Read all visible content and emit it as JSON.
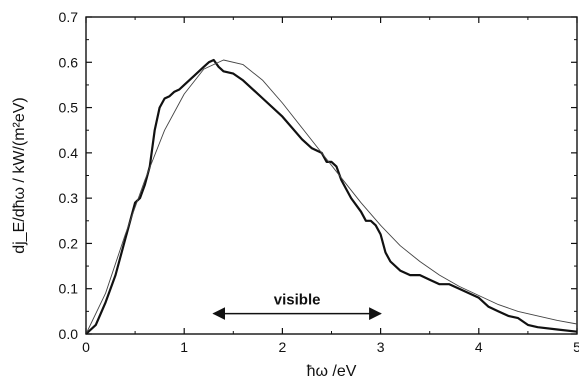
{
  "chart_data": {
    "type": "line",
    "title": "",
    "xlabel": "ħω /eV",
    "ylabel": "dj_E/dħω / kW/(m²eV)",
    "xlim": [
      0,
      5
    ],
    "ylim": [
      0,
      0.7
    ],
    "grid": false,
    "legend": "none",
    "x_ticks": [
      "0",
      "1",
      "2",
      "3",
      "4",
      "5"
    ],
    "y_ticks": [
      "0.0",
      "0.1",
      "0.2",
      "0.3",
      "0.4",
      "0.5",
      "0.6",
      "0.7"
    ],
    "series": [
      {
        "style": "thick",
        "color": "#111111",
        "x": [
          0,
          0.1,
          0.2,
          0.3,
          0.35,
          0.4,
          0.45,
          0.5,
          0.55,
          0.6,
          0.65,
          0.7,
          0.75,
          0.8,
          0.85,
          0.9,
          0.95,
          1.0,
          1.05,
          1.1,
          1.2,
          1.25,
          1.3,
          1.35,
          1.4,
          1.5,
          1.6,
          1.8,
          2.0,
          2.2,
          2.3,
          2.4,
          2.45,
          2.5,
          2.55,
          2.6,
          2.7,
          2.8,
          2.85,
          2.9,
          2.95,
          3.0,
          3.05,
          3.1,
          3.2,
          3.3,
          3.4,
          3.5,
          3.6,
          3.7,
          3.8,
          3.9,
          4.0,
          4.1,
          4.2,
          4.3,
          4.4,
          4.5,
          4.6,
          4.8,
          5.0
        ],
        "values": [
          0.0,
          0.02,
          0.07,
          0.13,
          0.17,
          0.21,
          0.25,
          0.29,
          0.3,
          0.33,
          0.37,
          0.45,
          0.5,
          0.52,
          0.525,
          0.535,
          0.54,
          0.55,
          0.56,
          0.57,
          0.59,
          0.6,
          0.605,
          0.59,
          0.58,
          0.575,
          0.56,
          0.52,
          0.48,
          0.43,
          0.41,
          0.4,
          0.38,
          0.38,
          0.37,
          0.34,
          0.3,
          0.27,
          0.25,
          0.25,
          0.24,
          0.22,
          0.18,
          0.16,
          0.14,
          0.13,
          0.13,
          0.12,
          0.11,
          0.11,
          0.1,
          0.09,
          0.08,
          0.06,
          0.05,
          0.04,
          0.035,
          0.02,
          0.015,
          0.01,
          0.005
        ]
      },
      {
        "style": "thin",
        "color": "#444444",
        "x": [
          0,
          0.2,
          0.4,
          0.6,
          0.8,
          1.0,
          1.2,
          1.4,
          1.6,
          1.8,
          2.0,
          2.2,
          2.4,
          2.6,
          2.8,
          3.0,
          3.2,
          3.4,
          3.6,
          3.8,
          4.0,
          4.2,
          4.4,
          4.6,
          4.8,
          5.0
        ],
        "values": [
          0.0,
          0.09,
          0.22,
          0.34,
          0.45,
          0.53,
          0.585,
          0.605,
          0.595,
          0.56,
          0.51,
          0.455,
          0.4,
          0.345,
          0.29,
          0.24,
          0.195,
          0.16,
          0.13,
          0.105,
          0.085,
          0.065,
          0.05,
          0.04,
          0.03,
          0.022
        ]
      }
    ],
    "annotation": {
      "text": "visible",
      "x_start": 1.3,
      "x_end": 3.0,
      "y": 0.045
    }
  }
}
